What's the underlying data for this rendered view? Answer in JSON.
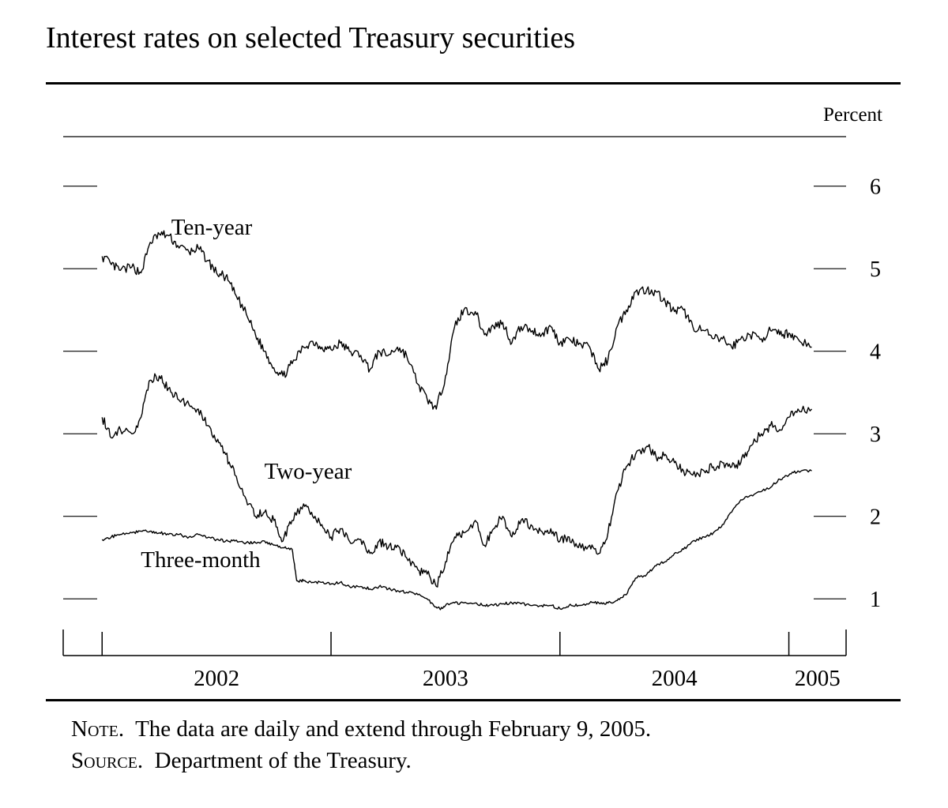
{
  "title": "Interest rates on selected Treasury securities",
  "notes": [
    {
      "label": "Note.",
      "text": "The data are daily and extend through February 9, 2005."
    },
    {
      "label": "Source.",
      "text": "Department of the Treasury."
    }
  ],
  "chart_data": {
    "type": "line",
    "ylabel": "Percent",
    "ylim": [
      0.6,
      6.6
    ],
    "yticks": [
      1,
      2,
      3,
      4,
      5,
      6
    ],
    "xlim": [
      2001.83,
      2005.25
    ],
    "x_year_boundaries": [
      2002,
      2003,
      2004,
      2005
    ],
    "x_tick_labels": [
      "2002",
      "2003",
      "2004",
      "2005"
    ],
    "grid": false,
    "legend": "inline labels",
    "colors": {
      "line": "#000000"
    },
    "series": [
      {
        "name": "Ten-year",
        "x": [
          2002.0,
          2002.04,
          2002.08,
          2002.13,
          2002.17,
          2002.21,
          2002.25,
          2002.29,
          2002.33,
          2002.38,
          2002.42,
          2002.46,
          2002.5,
          2002.54,
          2002.58,
          2002.63,
          2002.67,
          2002.71,
          2002.75,
          2002.79,
          2002.83,
          2002.88,
          2002.92,
          2002.96,
          2003.0,
          2003.04,
          2003.08,
          2003.13,
          2003.17,
          2003.21,
          2003.25,
          2003.29,
          2003.33,
          2003.38,
          2003.42,
          2003.46,
          2003.5,
          2003.54,
          2003.58,
          2003.63,
          2003.67,
          2003.71,
          2003.75,
          2003.79,
          2003.83,
          2003.88,
          2003.92,
          2003.96,
          2004.0,
          2004.04,
          2004.08,
          2004.13,
          2004.17,
          2004.21,
          2004.25,
          2004.29,
          2004.33,
          2004.38,
          2004.42,
          2004.46,
          2004.5,
          2004.54,
          2004.58,
          2004.63,
          2004.67,
          2004.71,
          2004.75,
          2004.79,
          2004.83,
          2004.88,
          2004.92,
          2004.96,
          2005.0,
          2005.04,
          2005.1
        ],
        "values": [
          5.15,
          5.05,
          4.98,
          5.02,
          4.95,
          5.32,
          5.42,
          5.4,
          5.28,
          5.2,
          5.25,
          5.1,
          4.95,
          4.9,
          4.7,
          4.45,
          4.2,
          4.0,
          3.8,
          3.7,
          3.85,
          4.05,
          4.12,
          4.05,
          4.02,
          4.1,
          4.0,
          3.95,
          3.78,
          4.0,
          3.95,
          4.05,
          3.95,
          3.6,
          3.42,
          3.3,
          3.7,
          4.3,
          4.5,
          4.48,
          4.2,
          4.3,
          4.35,
          4.1,
          4.3,
          4.25,
          4.2,
          4.3,
          4.1,
          4.15,
          4.08,
          4.05,
          3.78,
          3.9,
          4.3,
          4.5,
          4.72,
          4.75,
          4.72,
          4.6,
          4.48,
          4.5,
          4.3,
          4.25,
          4.15,
          4.15,
          4.05,
          4.15,
          4.2,
          4.15,
          4.25,
          4.2,
          4.22,
          4.15,
          4.05
        ]
      },
      {
        "name": "Two-year",
        "x": [
          2002.0,
          2002.04,
          2002.08,
          2002.13,
          2002.17,
          2002.21,
          2002.25,
          2002.29,
          2002.33,
          2002.38,
          2002.42,
          2002.46,
          2002.5,
          2002.54,
          2002.58,
          2002.63,
          2002.67,
          2002.71,
          2002.75,
          2002.79,
          2002.83,
          2002.88,
          2002.92,
          2002.96,
          2003.0,
          2003.04,
          2003.08,
          2003.13,
          2003.17,
          2003.21,
          2003.25,
          2003.29,
          2003.33,
          2003.38,
          2003.42,
          2003.46,
          2003.5,
          2003.54,
          2003.58,
          2003.63,
          2003.67,
          2003.71,
          2003.75,
          2003.79,
          2003.83,
          2003.88,
          2003.92,
          2003.96,
          2004.0,
          2004.04,
          2004.08,
          2004.13,
          2004.17,
          2004.21,
          2004.25,
          2004.29,
          2004.33,
          2004.38,
          2004.42,
          2004.46,
          2004.5,
          2004.54,
          2004.58,
          2004.63,
          2004.67,
          2004.71,
          2004.75,
          2004.79,
          2004.83,
          2004.88,
          2004.92,
          2004.96,
          2005.0,
          2005.04,
          2005.1
        ],
        "values": [
          3.2,
          2.95,
          3.05,
          3.0,
          3.2,
          3.65,
          3.7,
          3.55,
          3.42,
          3.35,
          3.3,
          3.1,
          2.9,
          2.75,
          2.5,
          2.2,
          2.0,
          2.05,
          1.95,
          1.7,
          1.95,
          2.15,
          2.0,
          1.9,
          1.75,
          1.85,
          1.7,
          1.72,
          1.55,
          1.7,
          1.62,
          1.65,
          1.5,
          1.35,
          1.3,
          1.15,
          1.45,
          1.75,
          1.8,
          1.95,
          1.65,
          1.85,
          2.0,
          1.75,
          1.95,
          1.88,
          1.82,
          1.85,
          1.7,
          1.75,
          1.62,
          1.65,
          1.55,
          1.8,
          2.3,
          2.6,
          2.75,
          2.85,
          2.72,
          2.75,
          2.65,
          2.55,
          2.5,
          2.55,
          2.6,
          2.65,
          2.6,
          2.65,
          2.85,
          3.0,
          3.1,
          3.05,
          3.2,
          3.3,
          3.3
        ]
      },
      {
        "name": "Three-month",
        "x": [
          2002.0,
          2002.04,
          2002.08,
          2002.13,
          2002.17,
          2002.21,
          2002.25,
          2002.29,
          2002.33,
          2002.38,
          2002.42,
          2002.46,
          2002.5,
          2002.54,
          2002.58,
          2002.63,
          2002.67,
          2002.71,
          2002.75,
          2002.79,
          2002.83,
          2002.85,
          2002.88,
          2002.92,
          2002.96,
          2003.0,
          2003.04,
          2003.08,
          2003.13,
          2003.17,
          2003.21,
          2003.25,
          2003.29,
          2003.33,
          2003.38,
          2003.42,
          2003.46,
          2003.48,
          2003.5,
          2003.54,
          2003.58,
          2003.63,
          2003.67,
          2003.71,
          2003.75,
          2003.79,
          2003.83,
          2003.88,
          2003.92,
          2003.96,
          2004.0,
          2004.04,
          2004.08,
          2004.13,
          2004.17,
          2004.21,
          2004.25,
          2004.29,
          2004.33,
          2004.38,
          2004.42,
          2004.46,
          2004.5,
          2004.54,
          2004.58,
          2004.63,
          2004.67,
          2004.71,
          2004.75,
          2004.79,
          2004.83,
          2004.88,
          2004.92,
          2004.96,
          2005.0,
          2005.04,
          2005.1
        ],
        "values": [
          1.72,
          1.75,
          1.78,
          1.8,
          1.82,
          1.82,
          1.8,
          1.78,
          1.78,
          1.75,
          1.78,
          1.74,
          1.72,
          1.7,
          1.7,
          1.68,
          1.68,
          1.7,
          1.65,
          1.62,
          1.6,
          1.22,
          1.22,
          1.2,
          1.2,
          1.18,
          1.2,
          1.15,
          1.15,
          1.12,
          1.15,
          1.12,
          1.1,
          1.08,
          1.05,
          1.0,
          0.9,
          0.88,
          0.92,
          0.95,
          0.95,
          0.95,
          0.92,
          0.92,
          0.94,
          0.95,
          0.94,
          0.92,
          0.92,
          0.92,
          0.88,
          0.92,
          0.92,
          0.95,
          0.95,
          0.95,
          0.98,
          1.05,
          1.25,
          1.3,
          1.4,
          1.45,
          1.55,
          1.6,
          1.7,
          1.75,
          1.8,
          1.9,
          2.05,
          2.2,
          2.25,
          2.3,
          2.35,
          2.45,
          2.5,
          2.55,
          2.55
        ]
      }
    ]
  }
}
